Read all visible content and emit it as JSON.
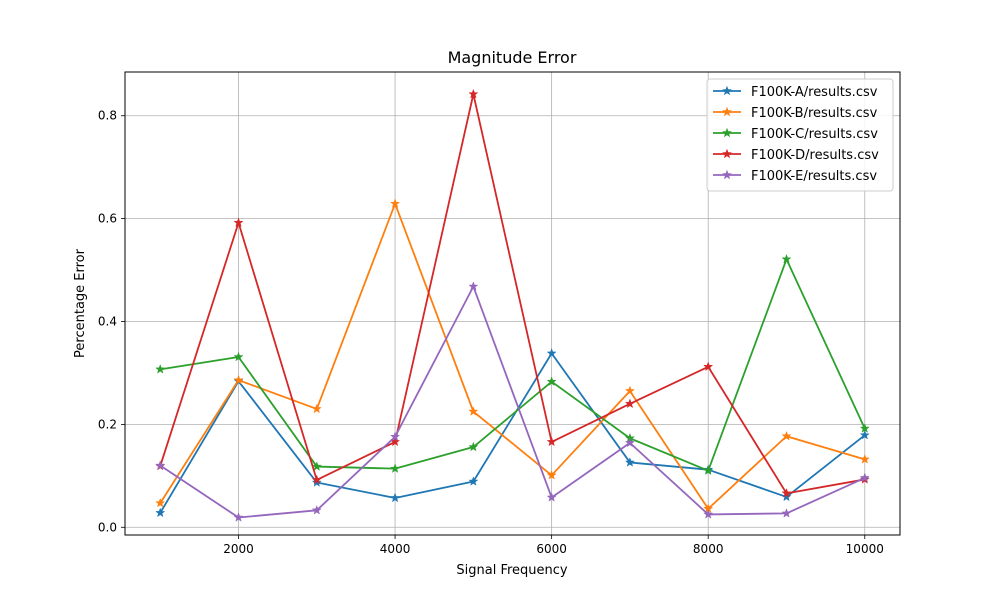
{
  "chart_data": {
    "type": "line",
    "title": "Magnitude Error",
    "xlabel": "Signal Frequency",
    "ylabel": "Percentage Error",
    "x": [
      1000,
      2000,
      3000,
      4000,
      5000,
      6000,
      7000,
      8000,
      9000,
      10000
    ],
    "xlim": [
      550,
      10450
    ],
    "ylim": [
      -0.015,
      0.885
    ],
    "xticks": [
      2000,
      4000,
      6000,
      8000,
      10000
    ],
    "yticks": [
      0.0,
      0.2,
      0.4,
      0.6,
      0.8
    ],
    "xtick_labels": [
      "2000",
      "4000",
      "6000",
      "8000",
      "10000"
    ],
    "ytick_labels": [
      "0.0",
      "0.2",
      "0.4",
      "0.6",
      "0.8"
    ],
    "grid": true,
    "legend_position": "top-right",
    "marker": "star",
    "series": [
      {
        "name": "F100K-A/results.csv",
        "color": "#1f77b4",
        "values": [
          0.028,
          0.284,
          0.087,
          0.057,
          0.089,
          0.338,
          0.126,
          0.112,
          0.059,
          0.179
        ]
      },
      {
        "name": "F100K-B/results.csv",
        "color": "#ff7f0e",
        "values": [
          0.047,
          0.286,
          0.23,
          0.629,
          0.225,
          0.101,
          0.265,
          0.036,
          0.177,
          0.132
        ]
      },
      {
        "name": "F100K-C/results.csv",
        "color": "#2ca02c",
        "values": [
          0.307,
          0.331,
          0.118,
          0.114,
          0.156,
          0.283,
          0.173,
          0.11,
          0.521,
          0.192
        ]
      },
      {
        "name": "F100K-D/results.csv",
        "color": "#d62728",
        "values": [
          0.119,
          0.592,
          0.092,
          0.166,
          0.842,
          0.166,
          0.24,
          0.312,
          0.066,
          0.093
        ]
      },
      {
        "name": "F100K-E/results.csv",
        "color": "#9467bd",
        "values": [
          0.12,
          0.019,
          0.033,
          0.176,
          0.468,
          0.058,
          0.164,
          0.025,
          0.027,
          0.096
        ]
      }
    ]
  }
}
